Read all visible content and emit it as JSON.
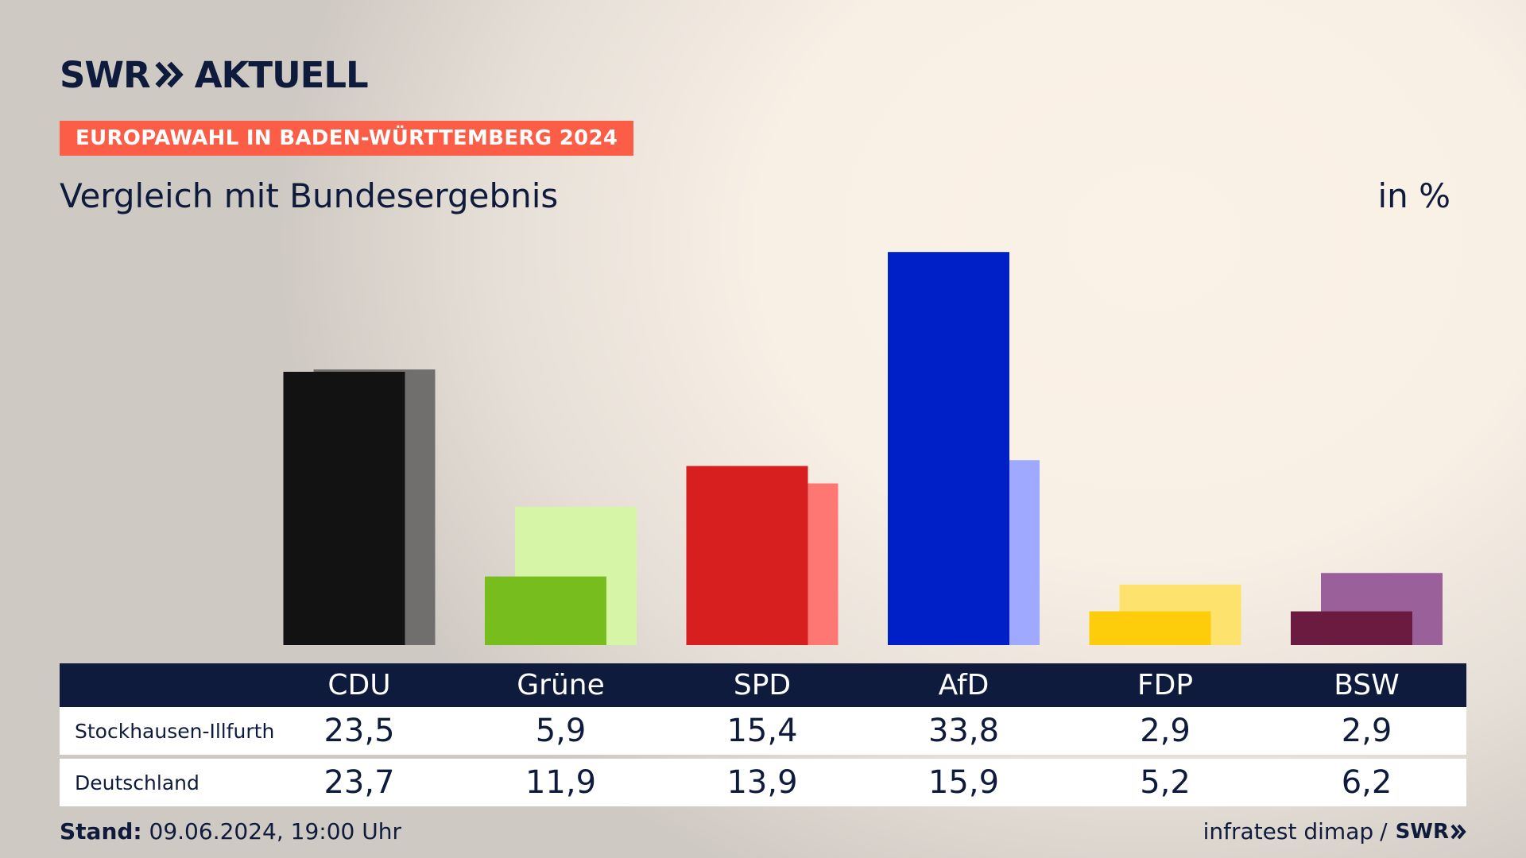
{
  "brand": {
    "logo_swr": "SWR",
    "logo_aktuell": "AKTUELL"
  },
  "tag": "EUROPAWAHL IN BADEN-WÜRTTEMBERG 2024",
  "subtitle": "Vergleich mit Bundesergebnis",
  "unit": "in %",
  "rows": [
    "Stockhausen-Illfurth",
    "Deutschland"
  ],
  "footer": {
    "stand_label": "Stand:",
    "stand_value": "09.06.2024, 19:00 Uhr",
    "source": "infratest dimap",
    "separator": "/",
    "source_brand": "SWR"
  },
  "chart_data": {
    "type": "bar",
    "categories": [
      "CDU",
      "Grüne",
      "SPD",
      "AfD",
      "FDP",
      "BSW"
    ],
    "series": [
      {
        "name": "Stockhausen-Illfurth",
        "values": [
          23.5,
          5.9,
          15.4,
          33.8,
          2.9,
          2.9
        ],
        "labels": [
          "23,5",
          "5,9",
          "15,4",
          "33,8",
          "2,9",
          "2,9"
        ],
        "colors": [
          "#121212",
          "#78bd1e",
          "#d71f1f",
          "#0020c7",
          "#fdcd0b",
          "#6b1a40"
        ]
      },
      {
        "name": "Deutschland",
        "values": [
          23.7,
          11.9,
          13.9,
          15.9,
          5.2,
          6.2
        ],
        "labels": [
          "23,7",
          "11,9",
          "13,9",
          "15,9",
          "5,2",
          "6,2"
        ],
        "colors": [
          "#716f6e",
          "#d6f5a6",
          "#ff7772",
          "#9fa9ff",
          "#fde26e",
          "#99609a"
        ]
      }
    ],
    "ylim": [
      0,
      36
    ],
    "grid": false,
    "legend": "table-below"
  }
}
